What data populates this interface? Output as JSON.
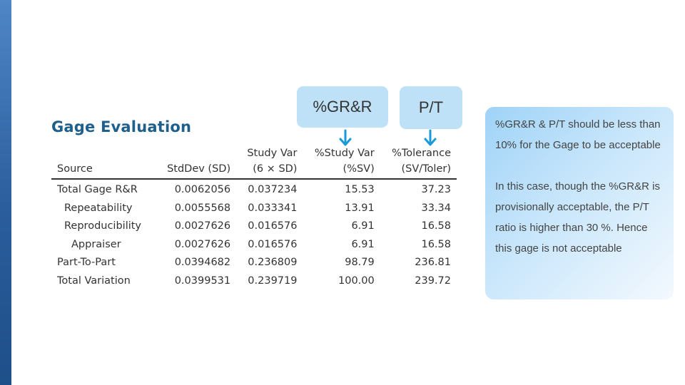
{
  "slide": {
    "title": "Gage Evaluation"
  },
  "table": {
    "headers": {
      "source": "Source",
      "stddev": "StdDev (SD)",
      "studyvar_l1": "Study Var",
      "studyvar_l2": "(6 × SD)",
      "pctstudy_l1": "%Study Var",
      "pctstudy_l2": "(%SV)",
      "pcttol_l1": "%Tolerance",
      "pcttol_l2": "(SV/Toler)"
    },
    "rows": [
      {
        "source": "Total Gage R&R",
        "stddev": "0.0062056",
        "studyvar": "0.037234",
        "pctstudy": "15.53",
        "pcttol": "37.23"
      },
      {
        "source": "Repeatability",
        "stddev": "0.0055568",
        "studyvar": "0.033341",
        "pctstudy": "13.91",
        "pcttol": "33.34"
      },
      {
        "source": "Reproducibility",
        "stddev": "0.0027626",
        "studyvar": "0.016576",
        "pctstudy": "6.91",
        "pcttol": "16.58"
      },
      {
        "source": "Appraiser",
        "stddev": "0.0027626",
        "studyvar": "0.016576",
        "pctstudy": "6.91",
        "pcttol": "16.58"
      },
      {
        "source": "Part-To-Part",
        "stddev": "0.0394682",
        "studyvar": "0.236809",
        "pctstudy": "98.79",
        "pcttol": "236.81"
      },
      {
        "source": "Total Variation",
        "stddev": "0.0399531",
        "studyvar": "0.239719",
        "pctstudy": "100.00",
        "pcttol": "239.72"
      }
    ]
  },
  "callouts": {
    "grr": "%GR&R",
    "pt": "P/T"
  },
  "note": {
    "para1": "%GR&R & P/T should be less than 10% for the Gage to be acceptable",
    "para2": "In this case, though the %GR&R is provisionally acceptable, the P/T ratio is higher than 30 %. Hence this gage is not acceptable"
  },
  "colors": {
    "title": "#1f5f8b",
    "callout_fill": "#bfe1f7",
    "arrow": "#1a9ad6",
    "side_bar": "#2a5d9c"
  }
}
